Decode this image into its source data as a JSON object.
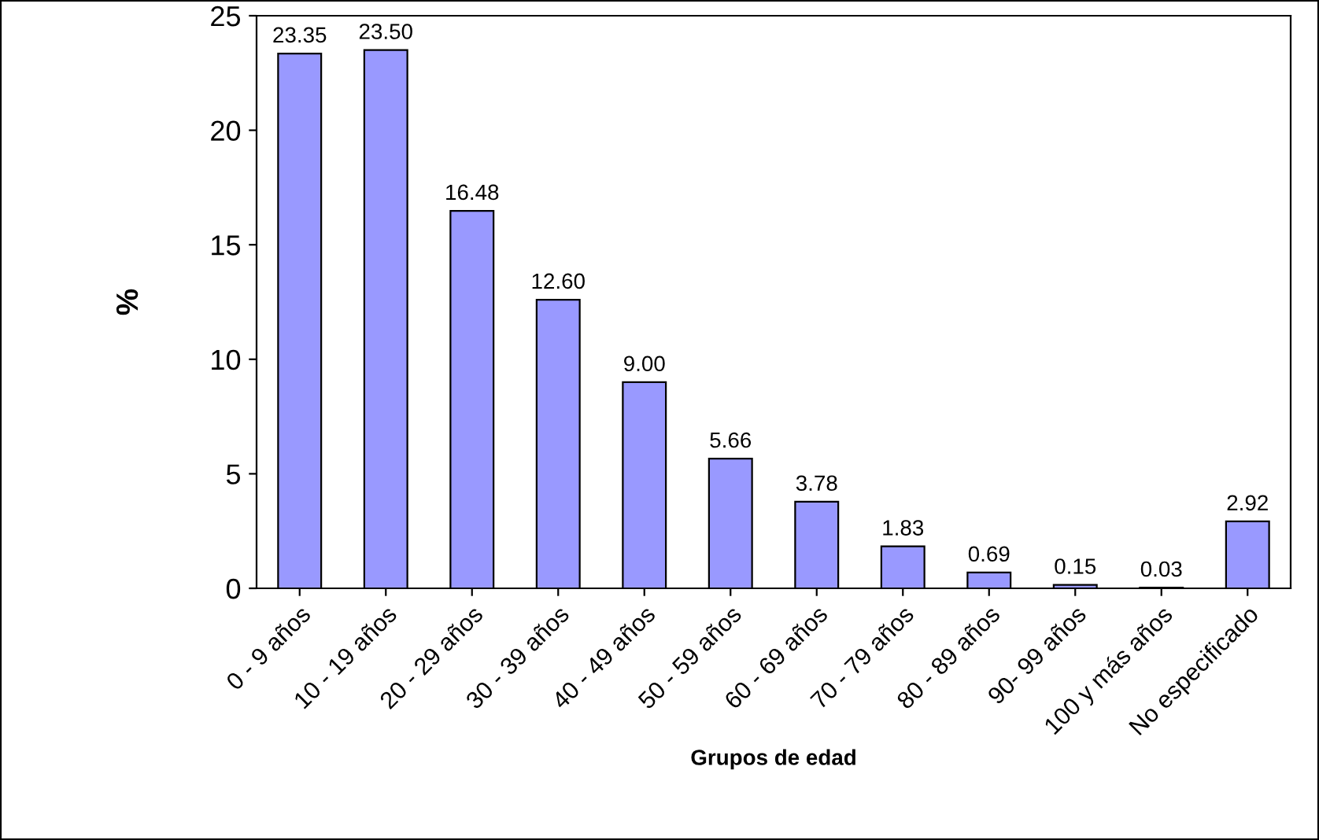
{
  "chart_data": {
    "type": "bar",
    "xlabel": "Grupos de edad",
    "ylabel": "%",
    "categories": [
      "0 - 9 años",
      "10 - 19 años",
      "20 - 29 años",
      "30 - 39 años",
      "40 - 49 años",
      "50 - 59 años",
      "60 - 69 años",
      "70 - 79 años",
      "80 - 89 años",
      "90- 99 años",
      "100 y más años",
      "No especificado"
    ],
    "values": [
      23.35,
      23.5,
      16.48,
      12.6,
      9.0,
      5.66,
      3.78,
      1.83,
      0.69,
      0.15,
      0.03,
      2.92
    ],
    "value_labels": [
      "23.35",
      "23.50",
      "16.48",
      "12.60",
      "9.00",
      "5.66",
      "3.78",
      "1.83",
      "0.69",
      "0.15",
      "0.03",
      "2.92"
    ],
    "color": "#9999ff",
    "ylim": [
      0,
      25
    ],
    "yticks": [
      0,
      5,
      10,
      15,
      20,
      25
    ],
    "grid": false,
    "legend": false
  }
}
